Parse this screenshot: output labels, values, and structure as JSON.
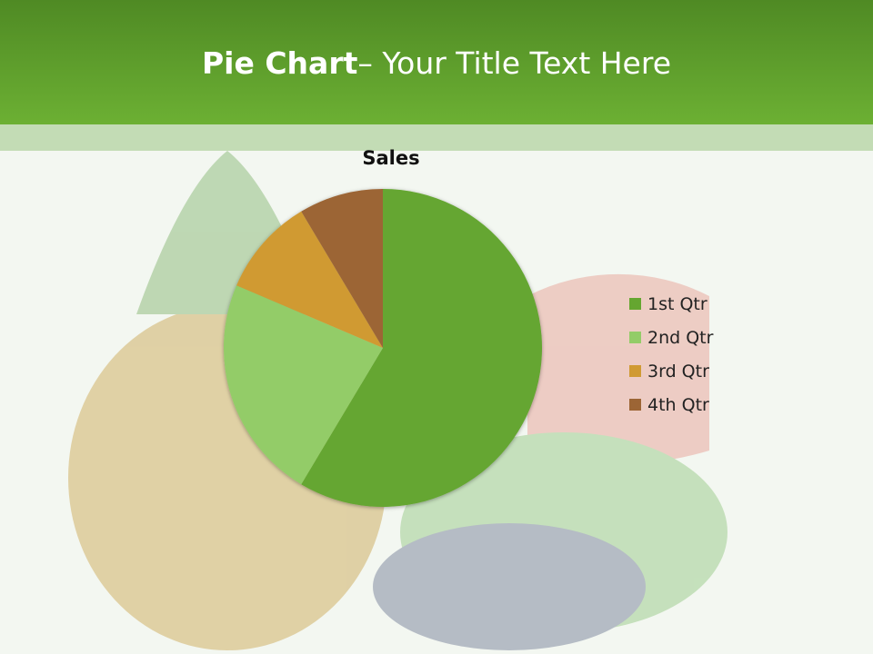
{
  "slide": {
    "title_bold": "Pie Chart",
    "title_rest": "– Your Title Text Here"
  },
  "chart_data": {
    "type": "pie",
    "title": "Sales",
    "categories": [
      "1st Qtr",
      "2nd Qtr",
      "3rd Qtr",
      "4th Qtr"
    ],
    "values": [
      8.2,
      3.2,
      1.4,
      1.2
    ],
    "colors": [
      "#65a630",
      "#93cc68",
      "#d09a33",
      "#9c6535"
    ],
    "legend_position": "right",
    "start_angle": "top, clockwise"
  }
}
